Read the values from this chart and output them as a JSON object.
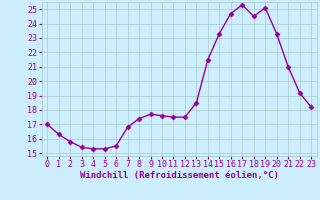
{
  "x": [
    0,
    1,
    2,
    3,
    4,
    5,
    6,
    7,
    8,
    9,
    10,
    11,
    12,
    13,
    14,
    15,
    16,
    17,
    18,
    19,
    20,
    21,
    22,
    23
  ],
  "y": [
    17.0,
    16.3,
    15.8,
    15.4,
    15.3,
    15.3,
    15.5,
    16.8,
    17.4,
    17.7,
    17.6,
    17.5,
    17.5,
    18.5,
    21.5,
    23.3,
    24.7,
    25.3,
    24.5,
    25.1,
    23.3,
    21.0,
    19.2,
    18.2
  ],
  "line_color": "#990099",
  "marker": "D",
  "markersize": 2.5,
  "linewidth": 1,
  "bg_color": "#cceeff",
  "grid_color": "#aacccc",
  "xlabel": "Windchill (Refroidissement éolien,°C)",
  "ylim": [
    15,
    25.5
  ],
  "xlim": [
    -0.5,
    23.5
  ],
  "ytick_values": [
    15,
    16,
    17,
    18,
    19,
    20,
    21,
    22,
    23,
    24,
    25
  ],
  "xlabel_color": "#990099",
  "tick_color": "#990099",
  "label_fontsize": 6.5,
  "tick_fontsize": 6.0
}
